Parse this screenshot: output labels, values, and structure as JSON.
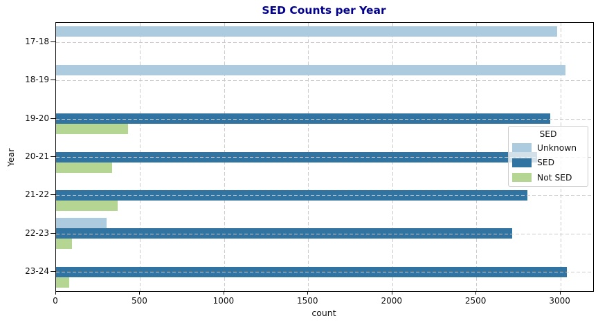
{
  "chart_data": {
    "type": "bar",
    "orientation": "horizontal",
    "title": "SED Counts per Year",
    "xlabel": "count",
    "ylabel": "Year",
    "categories": [
      "17-18",
      "18-19",
      "19-20",
      "20-21",
      "21-22",
      "22-23",
      "23-24"
    ],
    "series": [
      {
        "name": "Unknown",
        "color": "#adcbdf",
        "values": [
          2980,
          3030,
          0,
          0,
          0,
          300,
          0
        ]
      },
      {
        "name": "SED",
        "color": "#3274a1",
        "values": [
          0,
          0,
          2940,
          2860,
          2805,
          2715,
          3040
        ]
      },
      {
        "name": "Not SED",
        "color": "#b5d593",
        "values": [
          0,
          0,
          430,
          335,
          365,
          95,
          80
        ]
      }
    ],
    "xlim": [
      0,
      3195
    ],
    "xticks": [
      0,
      500,
      1000,
      1500,
      2000,
      2500,
      3000
    ],
    "grid": "dashed both axes",
    "legend": {
      "title": "SED",
      "position": "center right"
    }
  },
  "styles": {
    "title_color": "#00008b",
    "grid_color": "#cbcbcb",
    "spine_color": "#000000",
    "background": "#ffffff"
  }
}
